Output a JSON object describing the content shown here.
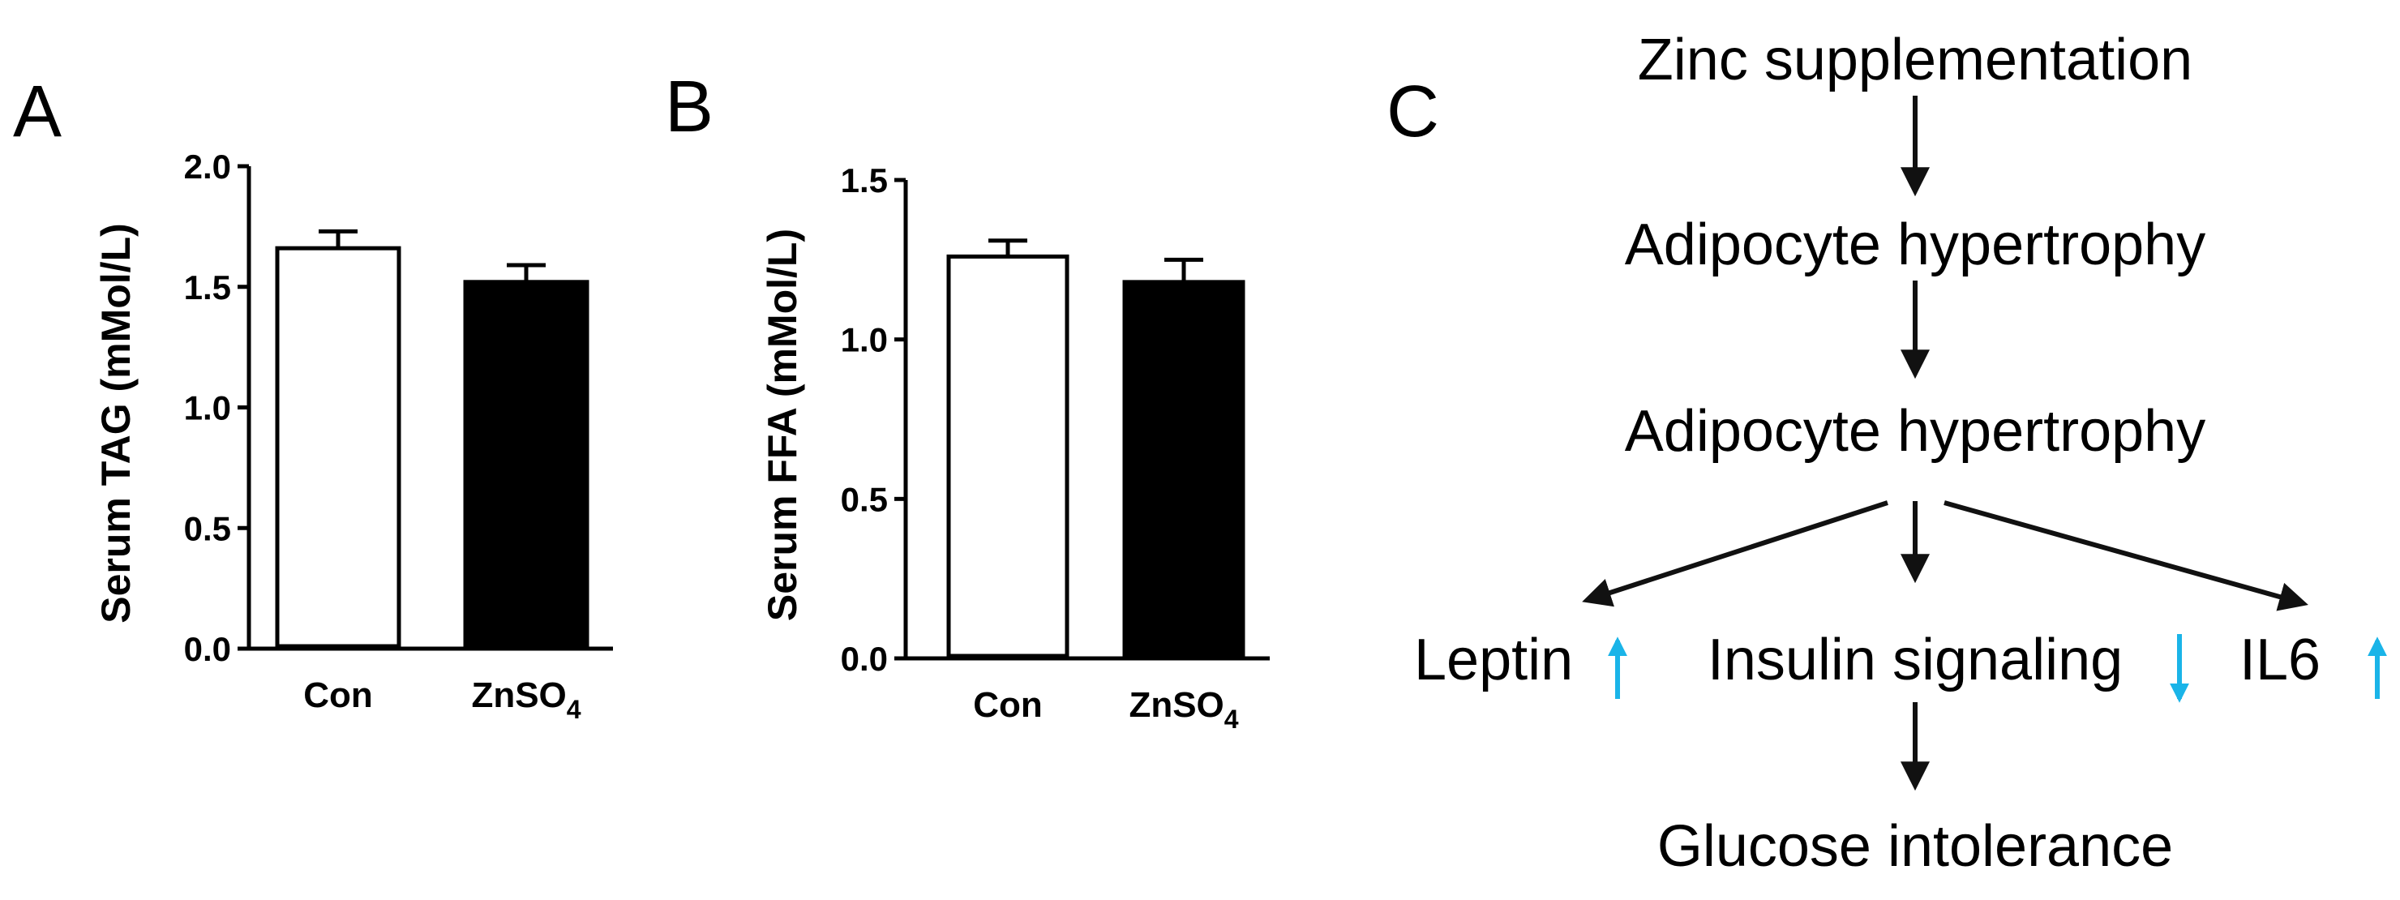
{
  "panels": {
    "a": "A",
    "b": "B",
    "c": "C"
  },
  "chart_data": [
    {
      "type": "bar",
      "panel": "A",
      "ylabel": "Serum TAG (mMol/L)",
      "ylim": [
        0,
        2.0
      ],
      "yticks": [
        "0.0",
        "0.5",
        "1.0",
        "1.5",
        "2.0"
      ],
      "categories": [
        {
          "base": "Con",
          "sub": ""
        },
        {
          "base": "ZnSO",
          "sub": "4"
        }
      ],
      "values": [
        1.66,
        1.52
      ],
      "errors": [
        0.07,
        0.07
      ],
      "bar_colors": [
        "#ffffff",
        "#000000"
      ]
    },
    {
      "type": "bar",
      "panel": "B",
      "ylabel": "Serum FFA (mMol/L)",
      "ylim": [
        0,
        1.5
      ],
      "yticks": [
        "0.0",
        "0.5",
        "1.0",
        "1.5"
      ],
      "categories": [
        {
          "base": "Con",
          "sub": ""
        },
        {
          "base": "ZnSO",
          "sub": "4"
        }
      ],
      "values": [
        1.26,
        1.18
      ],
      "errors": [
        0.05,
        0.07
      ],
      "bar_colors": [
        "#ffffff",
        "#000000"
      ]
    }
  ],
  "diagram": {
    "step1": "Zinc supplementation",
    "step2": "Adipocyte hypertrophy",
    "step3": "Adipocyte hypertrophy",
    "leptin": "Leptin",
    "insulin": "Insulin signaling",
    "il6": "IL6",
    "step5": "Glucose intolerance",
    "indicators": {
      "leptin": "up",
      "insulin": "down",
      "il6": "up"
    },
    "indicator_color": "#1ab4e8",
    "arrow_color": "#111111"
  }
}
